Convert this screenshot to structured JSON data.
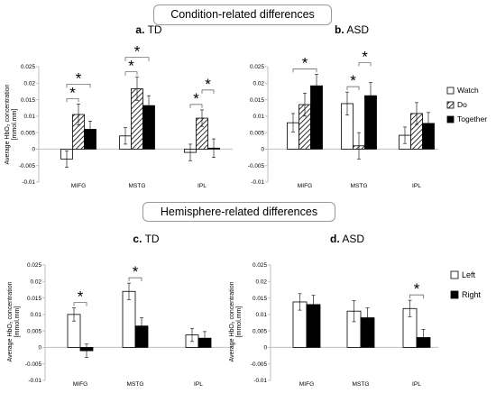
{
  "banners": {
    "condition": "Condition-related differences",
    "hemisphere": "Hemisphere-related differences"
  },
  "colors": {
    "ink": "#000000",
    "grid_axis": "#bfbfbf",
    "hatch": "#000000",
    "fill_open": "#ffffff"
  },
  "chart_data": [
    {
      "id": "a",
      "type": "bar",
      "panel_letter": "a.",
      "title": "TD",
      "ylabel_line1": "Average HbO₂ concentration",
      "ylabel_line2": "[mmol.mm]",
      "xlabel": "",
      "ylim": [
        -0.01,
        0.025
      ],
      "yticks": [
        "-0.01",
        "-0.005",
        "0",
        "0.005",
        "0.01",
        "0.015",
        "0.02",
        "0.025"
      ],
      "categories": [
        "MIFG",
        "MSTG",
        "IPL"
      ],
      "series": [
        {
          "name": "Watch",
          "style": "open",
          "values": [
            -0.003,
            0.004,
            -0.001
          ],
          "errors": [
            0.0025,
            0.0025,
            0.0025
          ]
        },
        {
          "name": "Do",
          "style": "hatch",
          "values": [
            0.0105,
            0.0183,
            0.0094
          ],
          "errors": [
            0.0032,
            0.0035,
            0.0025
          ]
        },
        {
          "name": "Together",
          "style": "solid",
          "values": [
            0.006,
            0.0132,
            0.0003
          ],
          "errors": [
            0.0025,
            0.003,
            0.0028
          ]
        }
      ],
      "significance": [
        {
          "text": "*",
          "pairs": [
            [
              0,
              0,
              1
            ],
            [
              0,
              0,
              2
            ]
          ]
        },
        {
          "text": "*",
          "pairs": [
            [
              1,
              0,
              1
            ],
            [
              1,
              0,
              2
            ]
          ]
        },
        {
          "text": "*",
          "pairs": [
            [
              2,
              0,
              1
            ]
          ]
        },
        {
          "text": "*",
          "pairs": [
            [
              2,
              1,
              2
            ]
          ]
        }
      ]
    },
    {
      "id": "b",
      "type": "bar",
      "panel_letter": "b.",
      "title": "ASD",
      "ylabel_line1": "",
      "ylabel_line2": "",
      "xlabel": "",
      "ylim": [
        -0.01,
        0.025
      ],
      "yticks": [
        "-0.01",
        "-0.005",
        "0",
        "0.005",
        "0.01",
        "0.015",
        "0.02",
        "0.025"
      ],
      "categories": [
        "MIFG",
        "MSTG",
        "IPL"
      ],
      "legend": [
        "Watch",
        "Do",
        "Together"
      ],
      "series": [
        {
          "name": "Watch",
          "style": "open",
          "values": [
            0.008,
            0.0138,
            0.0042
          ],
          "errors": [
            0.0028,
            0.0035,
            0.0025
          ]
        },
        {
          "name": "Do",
          "style": "hatch",
          "values": [
            0.0135,
            0.001,
            0.0108
          ],
          "errors": [
            0.0035,
            0.004,
            0.0033
          ]
        },
        {
          "name": "Together",
          "style": "solid",
          "values": [
            0.0192,
            0.0162,
            0.0078
          ],
          "errors": [
            0.0035,
            0.004,
            0.0033
          ]
        }
      ],
      "significance": [
        {
          "text": "*",
          "pairs": [
            [
              0,
              0,
              2
            ]
          ]
        },
        {
          "text": "*",
          "pairs": [
            [
              1,
              0,
              1
            ]
          ]
        },
        {
          "text": "*",
          "pairs": [
            [
              1,
              1,
              2
            ]
          ]
        }
      ]
    },
    {
      "id": "c",
      "type": "bar",
      "panel_letter": "c.",
      "title": "TD",
      "ylabel_line1": "Average HbO₂ concentration",
      "ylabel_line2": "[mmol.mm]",
      "xlabel": "",
      "ylim": [
        -0.01,
        0.025
      ],
      "yticks": [
        "-0.01",
        "-0.005",
        "0",
        "0.005",
        "0.01",
        "0.015",
        "0.02",
        "0.025"
      ],
      "categories": [
        "MIFG",
        "MSTG",
        "IPL"
      ],
      "series": [
        {
          "name": "Left",
          "style": "open",
          "values": [
            0.01,
            0.017,
            0.0038
          ],
          "errors": [
            0.002,
            0.0025,
            0.002
          ]
        },
        {
          "name": "Right",
          "style": "solid",
          "values": [
            -0.001,
            0.0065,
            0.0028
          ],
          "errors": [
            0.002,
            0.0025,
            0.002
          ]
        }
      ],
      "significance": [
        {
          "text": "*",
          "pairs": [
            [
              0,
              0,
              1
            ]
          ]
        },
        {
          "text": "*",
          "pairs": [
            [
              1,
              0,
              1
            ]
          ]
        }
      ]
    },
    {
      "id": "d",
      "type": "bar",
      "panel_letter": "d.",
      "title": "ASD",
      "ylabel_line1": "Average HbO₂ concentration",
      "ylabel_line2": "[mmol.mm]",
      "xlabel": "",
      "ylim": [
        -0.01,
        0.025
      ],
      "yticks": [
        "-0.01",
        "-0.005",
        "0",
        "0.005",
        "0.01",
        "0.015",
        "0.02",
        "0.025"
      ],
      "categories": [
        "MIFG",
        "MSTG",
        "IPL"
      ],
      "legend": [
        "Left",
        "Right"
      ],
      "series": [
        {
          "name": "Left",
          "style": "open",
          "values": [
            0.0138,
            0.011,
            0.0118
          ],
          "errors": [
            0.0025,
            0.0032,
            0.0025
          ]
        },
        {
          "name": "Right",
          "style": "solid",
          "values": [
            0.013,
            0.009,
            0.003
          ],
          "errors": [
            0.0028,
            0.003,
            0.0025
          ]
        }
      ],
      "significance": [
        {
          "text": "*",
          "pairs": [
            [
              2,
              0,
              1
            ]
          ]
        }
      ]
    }
  ]
}
